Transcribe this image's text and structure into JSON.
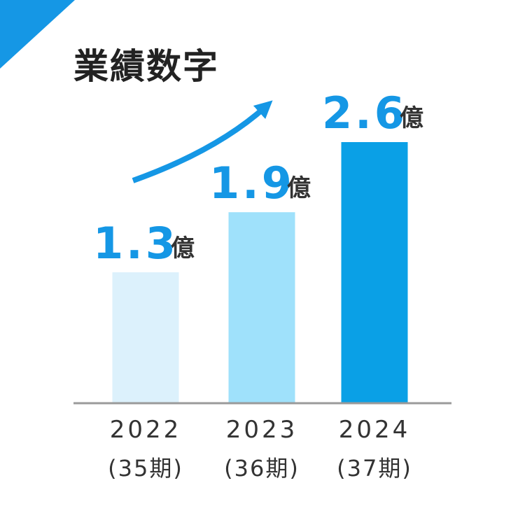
{
  "colors": {
    "accent": "#1597e5",
    "text": "#333333",
    "axis": "#9a9a9a"
  },
  "chart_data": {
    "type": "bar",
    "title": "業績数字",
    "categories": [
      "2022",
      "2023",
      "2024"
    ],
    "category_sublabels": [
      "(35期)",
      "(36期)",
      "(37期)"
    ],
    "values": [
      1.3,
      1.9,
      2.6
    ],
    "value_labels": [
      "1.3",
      "1.9",
      "2.6"
    ],
    "unit": "億",
    "bar_colors": [
      "#dcf1fc",
      "#9fe1fb",
      "#0aa0e6"
    ],
    "ylim": [
      0,
      2.6
    ],
    "grid": false,
    "legend": "none",
    "annotations": [
      "upward-trend-arrow"
    ]
  }
}
